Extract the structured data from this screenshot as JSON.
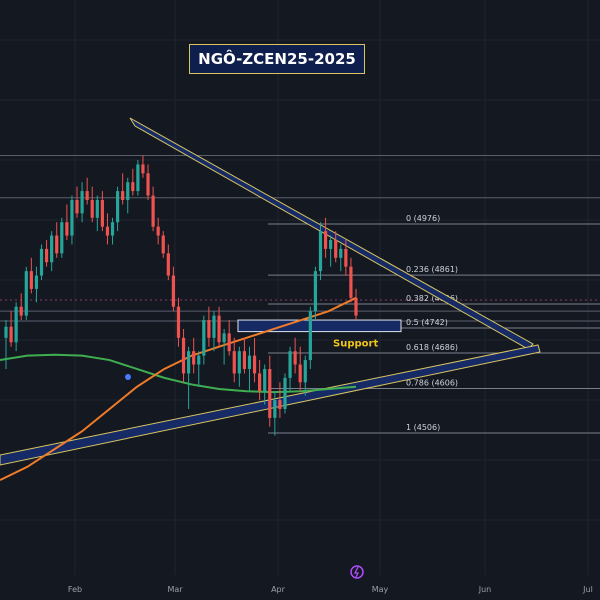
{
  "chart_data": {
    "type": "candlestick",
    "title": "NGÔ-ZCEN25-2025",
    "x_tick_labels": [
      "Feb",
      "Mar",
      "Apr",
      "May",
      "Jun",
      "Jul"
    ],
    "ylim": [
      4460,
      5080
    ],
    "fib_levels": [
      {
        "ratio": "0",
        "price": 4976,
        "label": "0 (4976)"
      },
      {
        "ratio": "0.236",
        "price": 4861,
        "label": "0.236 (4861)"
      },
      {
        "ratio": "0.382",
        "price": 4796,
        "label": "0.382 (4796)"
      },
      {
        "ratio": "0.5",
        "price": 4742,
        "label": "0.5 (4742)"
      },
      {
        "ratio": "0.618",
        "price": 4686,
        "label": "0.618 (4686)"
      },
      {
        "ratio": "0.786",
        "price": 4606,
        "label": "0.786 (4606)"
      },
      {
        "ratio": "1",
        "price": 4506,
        "label": "1 (4506)"
      }
    ],
    "support_zone": {
      "label": "Support",
      "price_top": 4760,
      "price_bottom": 4734
    },
    "horizontal_levels": [
      5130,
      5035,
      4780,
      4758
    ],
    "candles": [
      [
        4720,
        4760,
        4650,
        4745
      ],
      [
        4745,
        4780,
        4700,
        4710
      ],
      [
        4710,
        4800,
        4690,
        4790
      ],
      [
        4790,
        4820,
        4760,
        4770
      ],
      [
        4770,
        4880,
        4760,
        4870
      ],
      [
        4870,
        4900,
        4820,
        4830
      ],
      [
        4830,
        4880,
        4800,
        4860
      ],
      [
        4860,
        4930,
        4850,
        4920
      ],
      [
        4920,
        4940,
        4880,
        4890
      ],
      [
        4890,
        4960,
        4870,
        4950
      ],
      [
        4950,
        4980,
        4900,
        4910
      ],
      [
        4910,
        4990,
        4900,
        4980
      ],
      [
        4980,
        5020,
        4940,
        4950
      ],
      [
        4950,
        5040,
        4930,
        5030
      ],
      [
        5030,
        5060,
        4990,
        5000
      ],
      [
        5000,
        5070,
        4980,
        5050
      ],
      [
        5050,
        5080,
        5020,
        5030
      ],
      [
        5030,
        5060,
        4980,
        4990
      ],
      [
        4990,
        5040,
        4960,
        5030
      ],
      [
        5030,
        5050,
        4960,
        4970
      ],
      [
        4970,
        5000,
        4930,
        4950
      ],
      [
        4950,
        4990,
        4930,
        4980
      ],
      [
        4980,
        5060,
        4960,
        5050
      ],
      [
        5050,
        5090,
        5020,
        5030
      ],
      [
        5030,
        5080,
        5000,
        5070
      ],
      [
        5070,
        5100,
        5040,
        5050
      ],
      [
        5050,
        5120,
        5040,
        5110
      ],
      [
        5110,
        5130,
        5080,
        5090
      ],
      [
        5090,
        5110,
        5030,
        5040
      ],
      [
        5040,
        5060,
        4960,
        4970
      ],
      [
        4970,
        4990,
        4930,
        4950
      ],
      [
        4950,
        4960,
        4900,
        4910
      ],
      [
        4910,
        4930,
        4850,
        4860
      ],
      [
        4860,
        4880,
        4780,
        4790
      ],
      [
        4790,
        4810,
        4700,
        4720
      ],
      [
        4720,
        4740,
        4620,
        4640
      ],
      [
        4640,
        4700,
        4560,
        4690
      ],
      [
        4690,
        4720,
        4640,
        4660
      ],
      [
        4660,
        4690,
        4610,
        4680
      ],
      [
        4680,
        4770,
        4660,
        4760
      ],
      [
        4760,
        4790,
        4700,
        4720
      ],
      [
        4720,
        4780,
        4690,
        4770
      ],
      [
        4770,
        4790,
        4700,
        4710
      ],
      [
        4710,
        4740,
        4660,
        4730
      ],
      [
        4730,
        4760,
        4680,
        4690
      ],
      [
        4690,
        4720,
        4620,
        4640
      ],
      [
        4640,
        4700,
        4610,
        4690
      ],
      [
        4690,
        4720,
        4640,
        4650
      ],
      [
        4650,
        4700,
        4600,
        4680
      ],
      [
        4680,
        4720,
        4620,
        4640
      ],
      [
        4640,
        4670,
        4580,
        4600
      ],
      [
        4600,
        4660,
        4570,
        4650
      ],
      [
        4650,
        4680,
        4520,
        4540
      ],
      [
        4540,
        4600,
        4500,
        4580
      ],
      [
        4580,
        4620,
        4540,
        4560
      ],
      [
        4560,
        4640,
        4550,
        4630
      ],
      [
        4630,
        4700,
        4600,
        4690
      ],
      [
        4690,
        4720,
        4640,
        4660
      ],
      [
        4660,
        4700,
        4600,
        4620
      ],
      [
        4620,
        4680,
        4590,
        4670
      ],
      [
        4670,
        4790,
        4650,
        4780
      ],
      [
        4780,
        4880,
        4760,
        4870
      ],
      [
        4870,
        4980,
        4850,
        4960
      ],
      [
        4960,
        4990,
        4900,
        4920
      ],
      [
        4920,
        4950,
        4880,
        4940
      ],
      [
        4940,
        4960,
        4890,
        4900
      ],
      [
        4900,
        4930,
        4870,
        4920
      ],
      [
        4920,
        4940,
        4860,
        4880
      ],
      [
        4880,
        4900,
        4800,
        4810
      ],
      [
        4810,
        4830,
        4760,
        4770
      ]
    ],
    "sma_orange": [
      4400,
      4430,
      4470,
      4510,
      4560,
      4610,
      4650,
      4680,
      4700,
      4720,
      4740,
      4760,
      4780,
      4810
    ],
    "sma_green": [
      4670,
      4680,
      4682,
      4680,
      4670,
      4650,
      4630,
      4615,
      4605,
      4600,
      4598,
      4600,
      4605,
      4610
    ],
    "grid": true
  }
}
